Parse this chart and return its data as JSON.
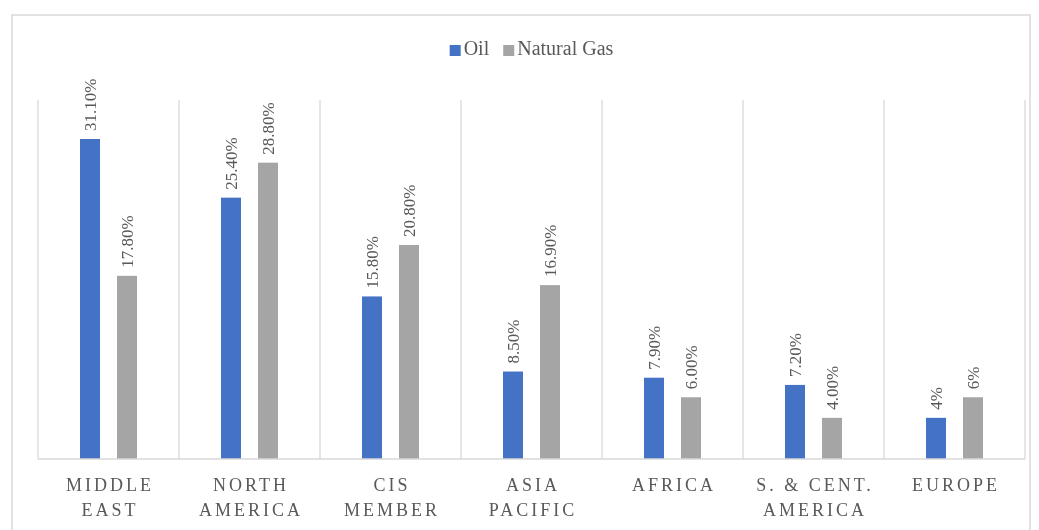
{
  "chart_data": {
    "type": "bar",
    "relative": false,
    "categories": [
      "MIDDLE EAST",
      "NORTH AMERICA",
      "CIS MEMBER",
      "ASIA PACIFIC",
      "AFRICA",
      "S. & CENT. AMERICA",
      "EUROPE"
    ],
    "series": [
      {
        "name": "Oil",
        "color": "#4472c4",
        "values": [
          31.1,
          25.4,
          15.8,
          8.5,
          7.9,
          7.2,
          4
        ],
        "value_labels": [
          "31.10%",
          "25.40%",
          "15.80%",
          "8.50%",
          "7.90%",
          "7.20%",
          "4%"
        ]
      },
      {
        "name": "Natural Gas",
        "color": "#a5a5a5",
        "values": [
          17.8,
          28.8,
          20.8,
          16.9,
          6.0,
          4.0,
          6
        ],
        "value_labels": [
          "17.80%",
          "28.80%",
          "20.80%",
          "16.90%",
          "6.00%",
          "4.00%",
          "6%"
        ]
      }
    ],
    "grid": "x",
    "legend": "top"
  }
}
